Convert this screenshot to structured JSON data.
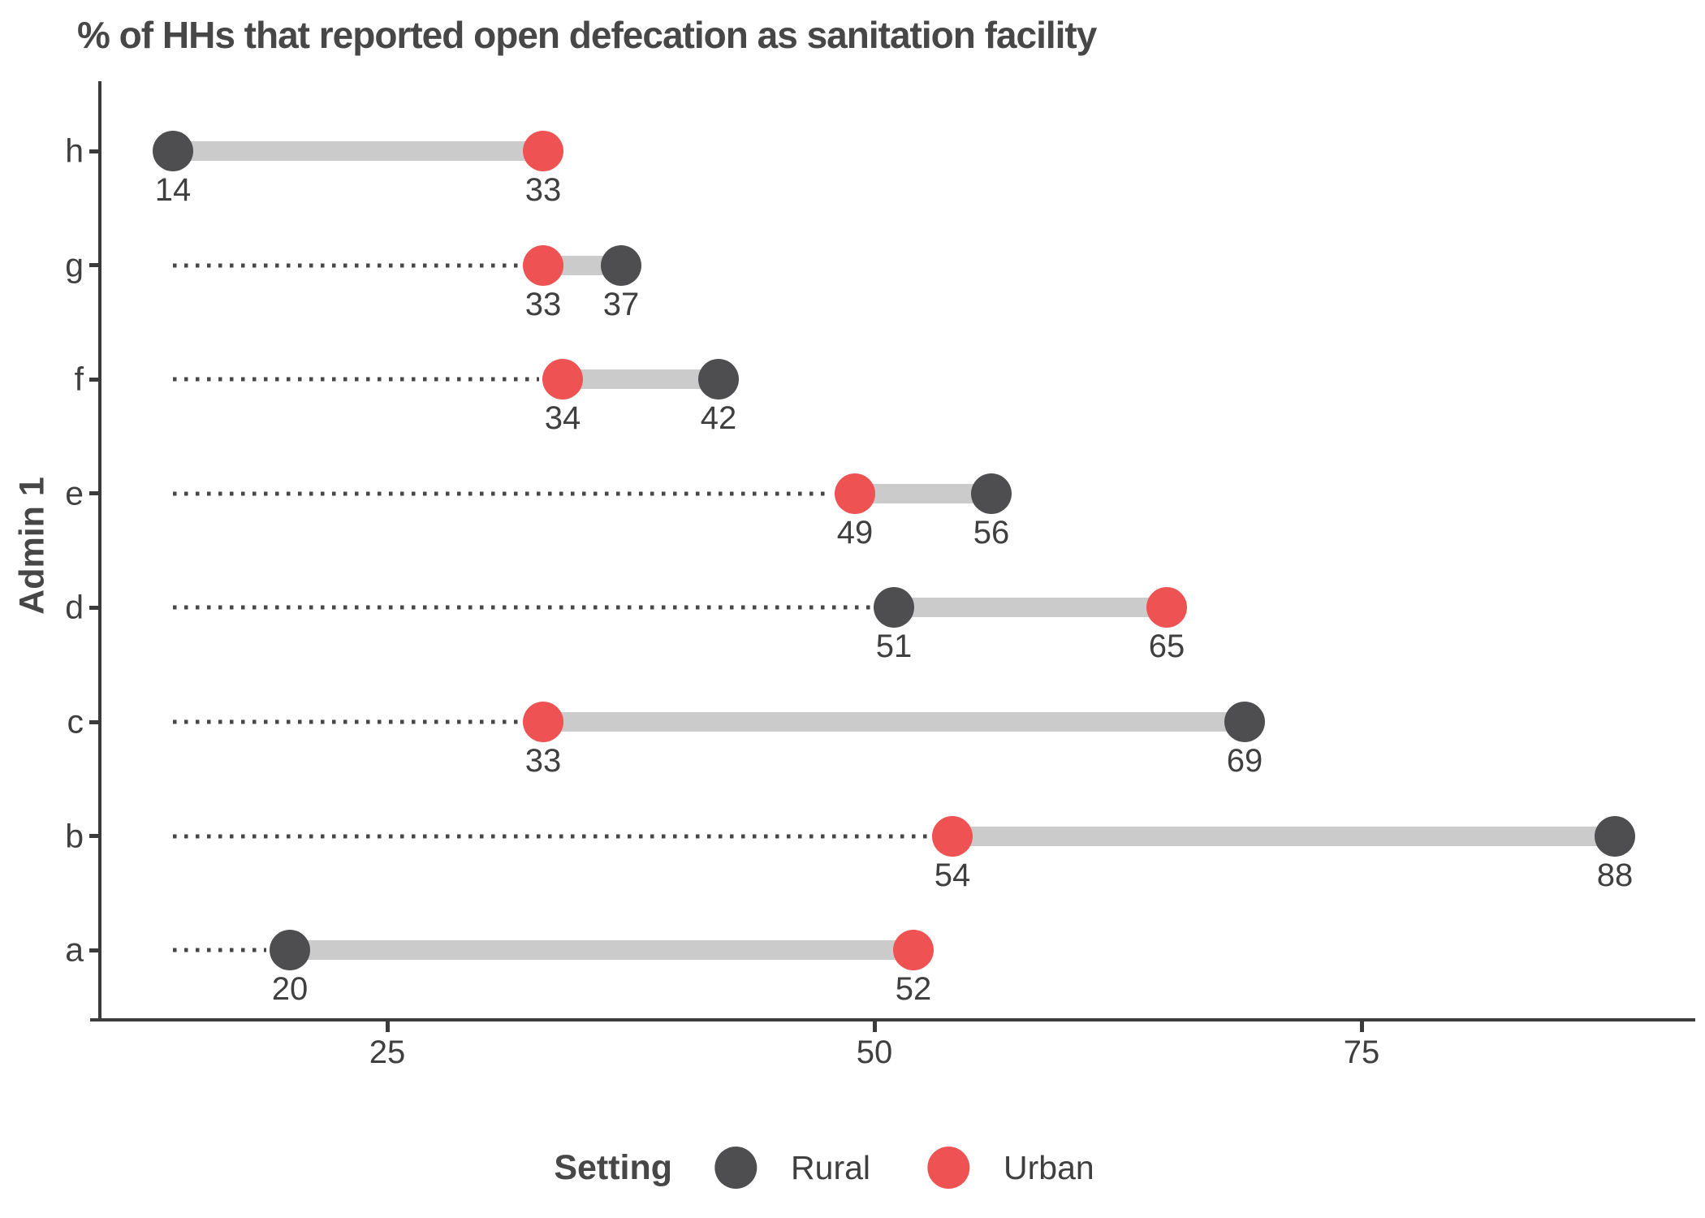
{
  "chart_data": {
    "type": "dumbbell",
    "title": "% of HHs that reported open defecation as sanitation facility",
    "ylabel": "Admin 1",
    "xlabel": "",
    "x_ticks": [
      25,
      50,
      75
    ],
    "xlim": [
      12.5,
      92
    ],
    "grid": "off",
    "leader_start_value": 14,
    "legend": {
      "title": "Setting",
      "position": "bottom-center",
      "entries": [
        {
          "name": "rural",
          "label": "Rural",
          "color": "#4e4e50"
        },
        {
          "name": "urban",
          "label": "Urban",
          "color": "#ee5252"
        }
      ]
    },
    "connector_color": "#cbcbcb",
    "categories_top_to_bottom": [
      "h",
      "g",
      "f",
      "e",
      "d",
      "c",
      "b",
      "a"
    ],
    "rows": [
      {
        "category": "h",
        "rural": 14,
        "urban": 33
      },
      {
        "category": "g",
        "rural": 37,
        "urban": 33
      },
      {
        "category": "f",
        "rural": 42,
        "urban": 34
      },
      {
        "category": "e",
        "rural": 56,
        "urban": 49
      },
      {
        "category": "d",
        "rural": 51,
        "urban": 65
      },
      {
        "category": "c",
        "rural": 69,
        "urban": 33
      },
      {
        "category": "b",
        "rural": 88,
        "urban": 54
      },
      {
        "category": "a",
        "rural": 20,
        "urban": 52
      }
    ]
  }
}
